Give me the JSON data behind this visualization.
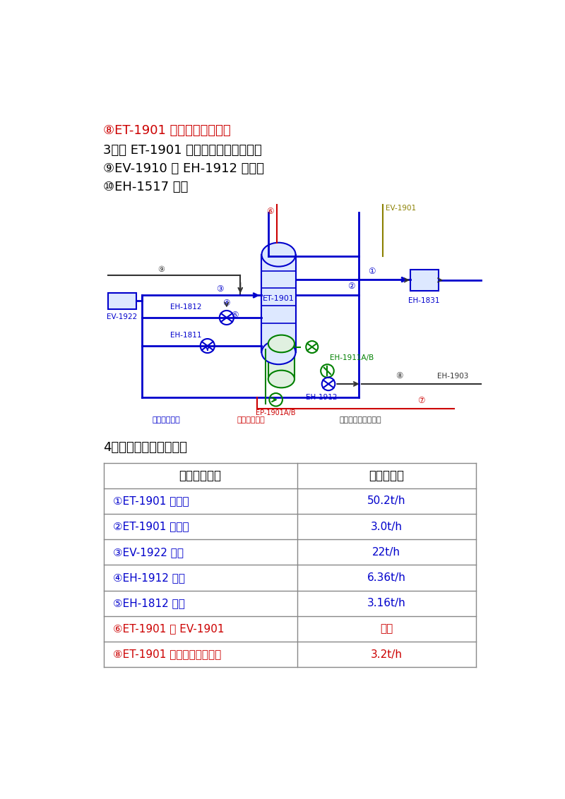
{
  "bg_color": "#ffffff",
  "title_line1": "⑧ET-1901 塔釜循环乙烷采出",
  "title_color1": "#cc0000",
  "section3_text": "3、与 ET-1901 相连但现在关闭的有：",
  "item8_text": "⑨EV-1910 去 EH-1912 开工线",
  "item9_text": "⑩EH-1517 开工",
  "section4_text": "4、现阶段各股物料量：",
  "table_header": [
    "各股物料名称",
    "各股物料量"
  ],
  "table_rows": [
    {
      "name": "①ET-1901 热回流",
      "value": "50.2t/h",
      "name_color": "#0000cc",
      "val_color": "#0000cc"
    },
    {
      "name": "②ET-1901 冷回流",
      "value": "3.0t/h",
      "name_color": "#0000cc",
      "val_color": "#0000cc"
    },
    {
      "name": "③EV-1922 液相",
      "value": "22t/h",
      "name_color": "#0000cc",
      "val_color": "#0000cc"
    },
    {
      "name": "④EH-1912 气相",
      "value": "6.36t/h",
      "name_color": "#0000cc",
      "val_color": "#0000cc"
    },
    {
      "name": "⑤EH-1812 气相",
      "value": "3.16t/h",
      "name_color": "#0000cc",
      "val_color": "#0000cc"
    },
    {
      "name": "⑥ET-1901 去 EV-1901",
      "value": "所求",
      "name_color": "#cc0000",
      "val_color": "#cc0000"
    },
    {
      "name": "⑧ET-1901 塔釜循环乙烷采出",
      "value": "3.2t/h",
      "name_color": "#cc0000",
      "val_color": "#cc0000"
    }
  ],
  "legend_blue": "蓝色表示进入",
  "legend_red": "红色表示排出",
  "legend_black": "黑色表示连接但关闭",
  "blue": "#0000cc",
  "red": "#cc0000",
  "green": "#008000",
  "black": "#333333",
  "olive": "#8b8000"
}
